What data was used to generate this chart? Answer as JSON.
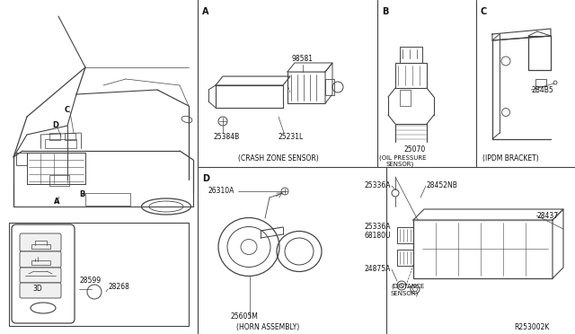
{
  "bg_color": "#ffffff",
  "fig_width": 6.4,
  "fig_height": 3.72,
  "ref_code": "R253002K",
  "keyfob_parts": [
    "28599",
    "28268"
  ],
  "lc": "#444444",
  "sections": {
    "A_label": "A",
    "A_caption": "(CRASH ZONE SENSOR)",
    "A_parts": [
      "98581",
      "25384B",
      "25231L"
    ],
    "B_label": "B",
    "B_caption": "(OIL PRESSURE\nSENSOR)",
    "B_parts": [
      "25070"
    ],
    "C_label": "C",
    "C_caption": "(IPDM BRACKET)",
    "C_parts": [
      "2B4B5"
    ],
    "D_label": "D",
    "D_caption": "(HORN ASSEMBLY)",
    "D_parts": [
      "26310A",
      "25605M"
    ],
    "E_parts": [
      "25336A",
      "28452NB",
      "28437",
      "25336A",
      "68180U",
      "24875A"
    ]
  }
}
